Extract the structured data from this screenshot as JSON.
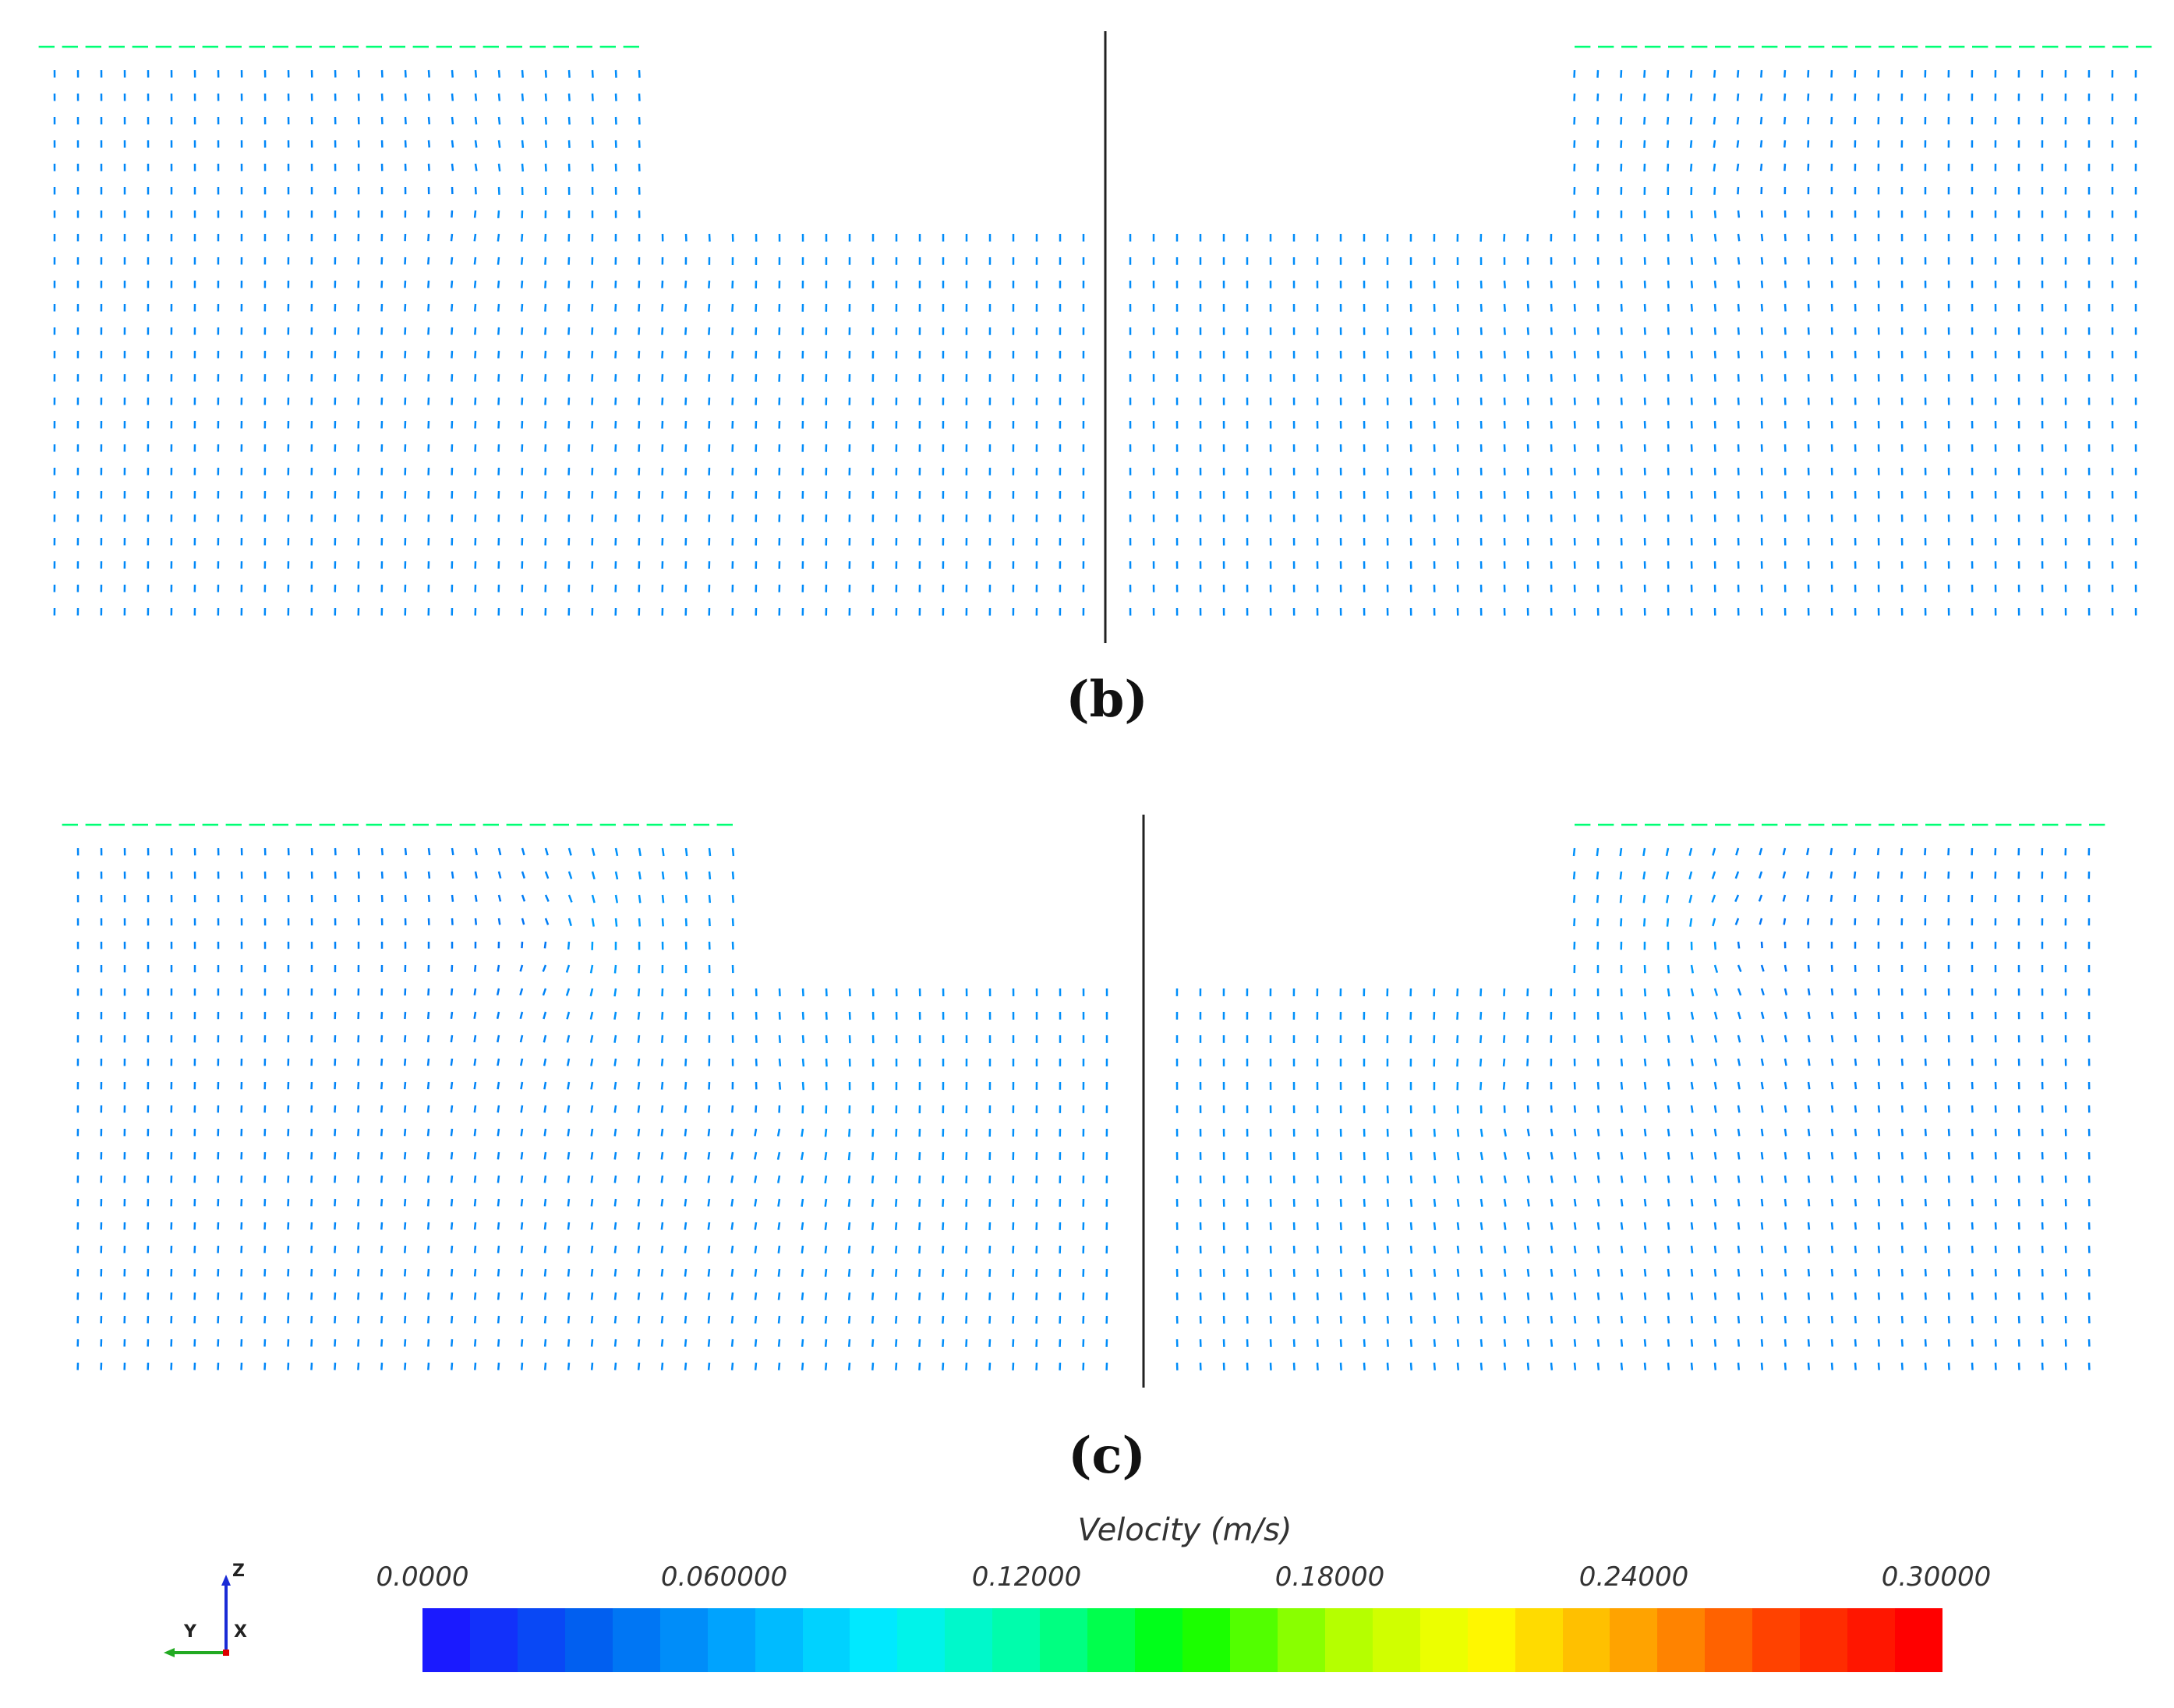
{
  "captions": {
    "b": "(b)",
    "c": "(c)"
  },
  "colorbar": {
    "title": "Velocity (m/s)",
    "ticks": [
      "0.0000",
      "0.060000",
      "0.12000",
      "0.18000",
      "0.24000",
      "0.30000"
    ],
    "range": [
      0,
      0.3
    ],
    "stops": [
      "#1a1aff",
      "#0061f0",
      "#00a8ff",
      "#00f0ff",
      "#00ffa0",
      "#00ff00",
      "#aaff00",
      "#ffff00",
      "#ffaa00",
      "#ff4400",
      "#ff0000"
    ]
  },
  "axes_triad": {
    "z": "Z",
    "y": "Y",
    "x": "X"
  },
  "panels": [
    {
      "id": "b",
      "caption_key": "b"
    },
    {
      "id": "c",
      "caption_key": "c"
    }
  ]
}
